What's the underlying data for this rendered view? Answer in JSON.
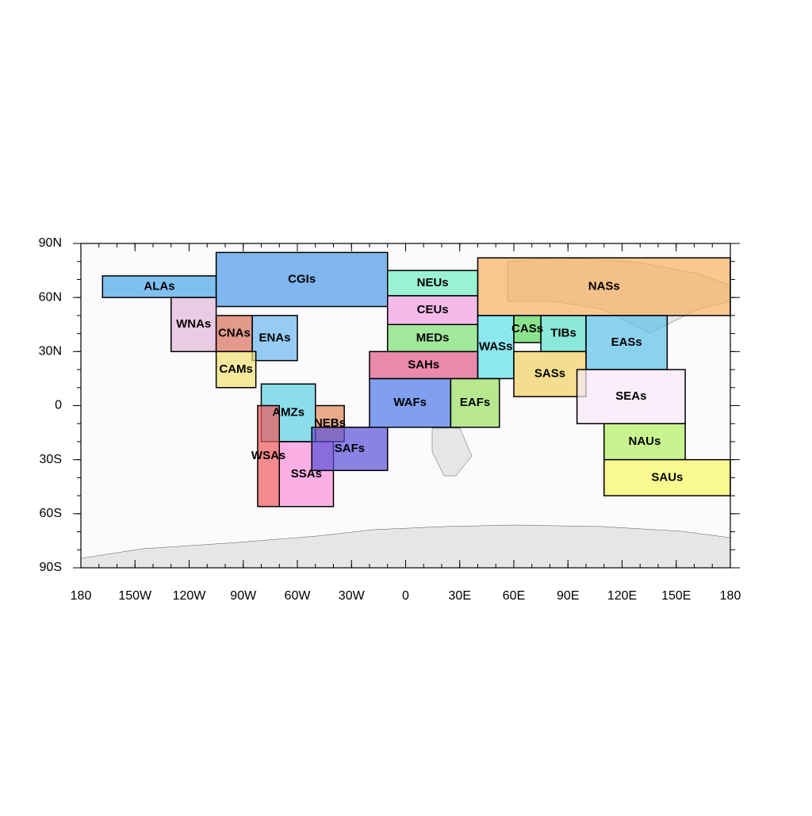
{
  "map": {
    "xticks": [
      {
        "value": -180,
        "label": "180"
      },
      {
        "value": -150,
        "label": "150W"
      },
      {
        "value": -120,
        "label": "120W"
      },
      {
        "value": -90,
        "label": "90W"
      },
      {
        "value": -60,
        "label": "60W"
      },
      {
        "value": -30,
        "label": "30W"
      },
      0,
      {
        "value": 30,
        "label": "30E"
      },
      {
        "value": 60,
        "label": "60E"
      },
      {
        "value": 90,
        "label": "90E"
      },
      {
        "value": 120,
        "label": "120E"
      },
      {
        "value": 150,
        "label": "150E"
      },
      {
        "value": 180,
        "label": "180"
      }
    ],
    "yticks": [
      {
        "value": 90,
        "label": "90N"
      },
      {
        "value": 60,
        "label": "60N"
      },
      {
        "value": 30,
        "label": "30N"
      },
      0,
      {
        "value": -30,
        "label": "30S"
      },
      {
        "value": -60,
        "label": "60S"
      },
      {
        "value": -90,
        "label": "90S"
      }
    ],
    "regions": [
      {
        "name": "ALAs",
        "color": "#4aa6e8",
        "lon": [
          -168,
          -105
        ],
        "lat": [
          60,
          72
        ]
      },
      {
        "name": "CGIs",
        "color": "#4a9ae8",
        "lon": [
          -105,
          -10
        ],
        "lat": [
          55,
          85
        ]
      },
      {
        "name": "WNAs",
        "color": "#e0b8d8",
        "lon": [
          -130,
          -105
        ],
        "lat": [
          30,
          60
        ]
      },
      {
        "name": "CNAs",
        "color": "#d8705a",
        "lon": [
          -105,
          -85
        ],
        "lat": [
          30,
          50
        ]
      },
      {
        "name": "ENAs",
        "color": "#6ab8f0",
        "lon": [
          -85,
          -60
        ],
        "lat": [
          25,
          50
        ]
      },
      {
        "name": "CAMs",
        "color": "#f0e070",
        "lon": [
          -105,
          -83
        ],
        "lat": [
          10,
          30
        ]
      },
      {
        "name": "AMZs",
        "color": "#5ad0e0",
        "lon": [
          -80,
          -50
        ],
        "lat": [
          -20,
          12
        ]
      },
      {
        "name": "NEBs",
        "color": "#e08a5a",
        "lon": [
          -50,
          -34
        ],
        "lat": [
          -20,
          0
        ]
      },
      {
        "name": "WSAs",
        "color": "#f05a5a",
        "lon": [
          -82,
          -70
        ],
        "lat": [
          -56,
          0
        ]
      },
      {
        "name": "SSAs",
        "color": "#f890d8",
        "lon": [
          -70,
          -40
        ],
        "lat": [
          -56,
          -20
        ]
      },
      {
        "name": "SAFs",
        "color": "#5a50d8",
        "lon": [
          -52,
          -10
        ],
        "lat": [
          -36,
          -12
        ]
      },
      {
        "name": "WAFs",
        "color": "#4a78e8",
        "lon": [
          -20,
          25
        ],
        "lat": [
          -12,
          15
        ]
      },
      {
        "name": "EAFs",
        "color": "#98e060",
        "lon": [
          25,
          52
        ],
        "lat": [
          -12,
          15
        ]
      },
      {
        "name": "SAHs",
        "color": "#e05a88",
        "lon": [
          -20,
          40
        ],
        "lat": [
          15,
          30
        ]
      },
      {
        "name": "MEDs",
        "color": "#7ae070",
        "lon": [
          -10,
          40
        ],
        "lat": [
          30,
          45
        ]
      },
      {
        "name": "CEUs",
        "color": "#f0a0e0",
        "lon": [
          -10,
          40
        ],
        "lat": [
          45,
          61
        ]
      },
      {
        "name": "NEUs",
        "color": "#70f0c0",
        "lon": [
          -10,
          40
        ],
        "lat": [
          61,
          75
        ]
      },
      {
        "name": "NASs",
        "color": "#f8b060",
        "lon": [
          40,
          180
        ],
        "lat": [
          50,
          82
        ]
      },
      {
        "name": "WASs",
        "color": "#5ae0e8",
        "lon": [
          40,
          60
        ],
        "lat": [
          15,
          50
        ]
      },
      {
        "name": "CASs",
        "color": "#5ad85a",
        "lon": [
          60,
          75
        ],
        "lat": [
          35,
          50
        ]
      },
      {
        "name": "TIBs",
        "color": "#5ae0c8",
        "lon": [
          75,
          100
        ],
        "lat": [
          30,
          50
        ]
      },
      {
        "name": "EASs",
        "color": "#5ac0e8",
        "lon": [
          100,
          145
        ],
        "lat": [
          20,
          50
        ]
      },
      {
        "name": "SASs",
        "color": "#f0d060",
        "lon": [
          60,
          100
        ],
        "lat": [
          5,
          30
        ]
      },
      {
        "name": "SEAs",
        "color": "#f8e8f8",
        "lon": [
          95,
          155
        ],
        "lat": [
          -10,
          20
        ]
      },
      {
        "name": "NAUs",
        "color": "#b0f060",
        "lon": [
          110,
          155
        ],
        "lat": [
          -30,
          -10
        ]
      },
      {
        "name": "SAUs",
        "color": "#f8f860",
        "lon": [
          110,
          180
        ],
        "lat": [
          -50,
          -30
        ]
      }
    ]
  }
}
